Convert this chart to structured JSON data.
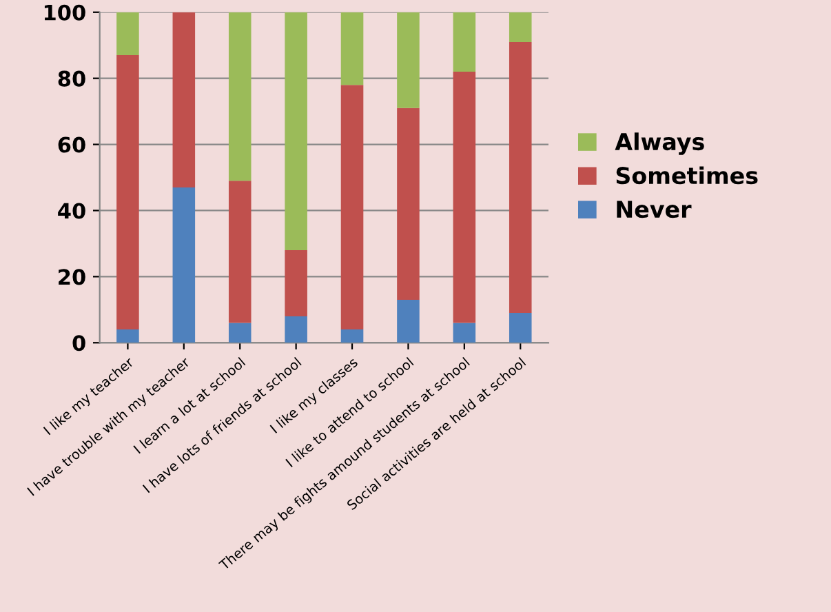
{
  "chart_data": {
    "type": "bar",
    "stacked": true,
    "categories": [
      "I like my teacher",
      "I have trouble with my teacher",
      "I learn a lot at school",
      "I have lots of friends at school",
      "I like my classes",
      "I like to attend to school",
      "There may be fights amound students at school",
      "Social activities are held at school"
    ],
    "series": [
      {
        "name": "Never",
        "color": "#4f81bd",
        "values": [
          4,
          47,
          6,
          8,
          4,
          13,
          6,
          9
        ]
      },
      {
        "name": "Sometimes",
        "color": "#c0504d",
        "values": [
          83,
          53,
          43,
          20,
          74,
          58,
          76,
          82
        ]
      },
      {
        "name": "Always",
        "color": "#9bbb59",
        "values": [
          13,
          0,
          51,
          72,
          22,
          29,
          18,
          9
        ]
      }
    ],
    "ylim": [
      0,
      100
    ],
    "yticks": [
      0,
      20,
      40,
      60,
      80,
      100
    ],
    "grid": "y",
    "legend": "right"
  }
}
